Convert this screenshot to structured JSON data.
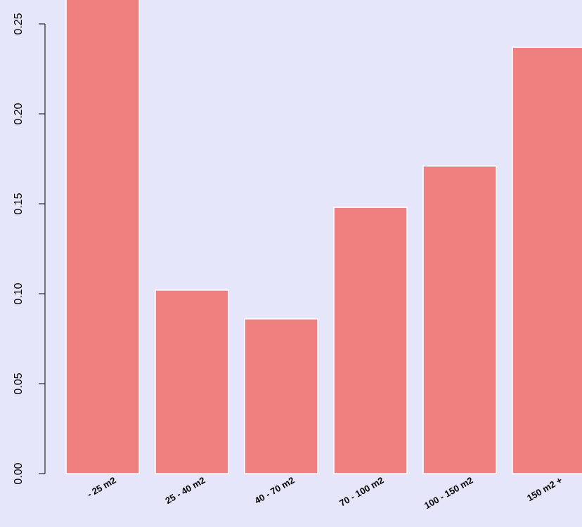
{
  "chart_data": {
    "type": "bar",
    "categories": [
      "- 25 m2",
      "25 - 40 m2",
      "40 - 70 m2",
      "70 - 100 m2",
      "100 - 150 m2",
      "150 m2 +"
    ],
    "values": [
      0.265,
      0.102,
      0.086,
      0.148,
      0.171,
      0.237
    ],
    "yticks": [
      "0.00",
      "0.05",
      "0.10",
      "0.15",
      "0.20",
      "0.25"
    ],
    "ylim": [
      0,
      0.265
    ],
    "grid": false,
    "colors": {
      "bar": "#f08080",
      "bar_border": "#ffffff",
      "background": "#e6e6fa"
    }
  }
}
